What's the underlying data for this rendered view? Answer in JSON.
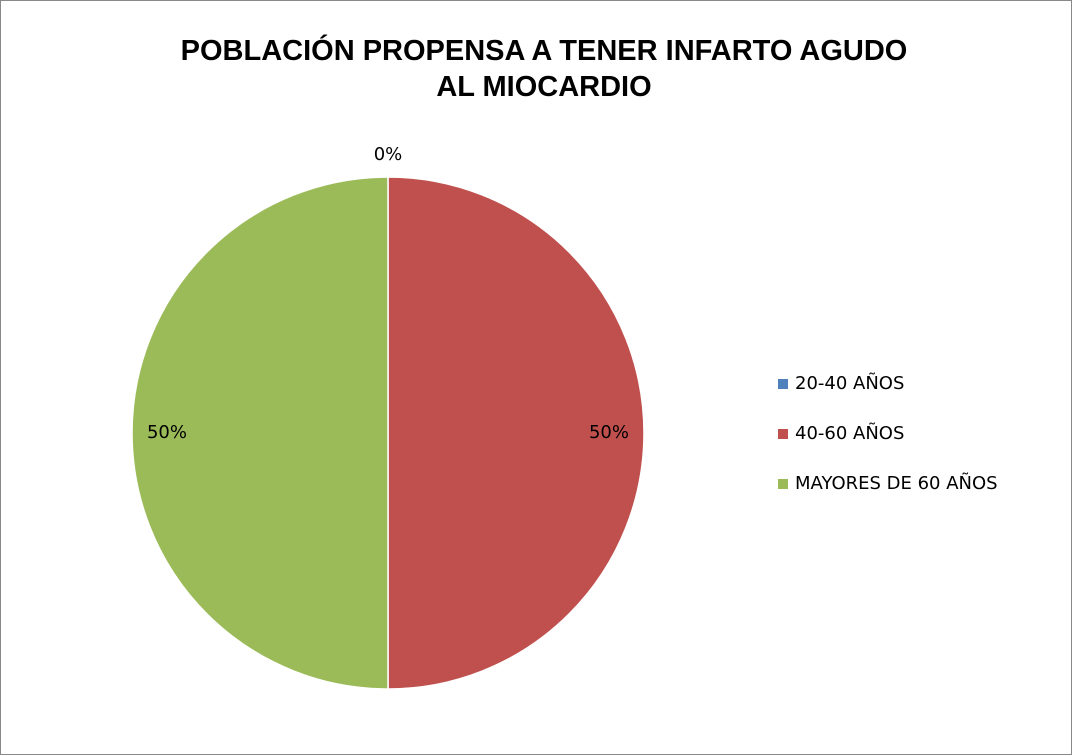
{
  "chart_data": {
    "type": "pie",
    "title": "POBLACIÓN PROPENSA A TENER INFARTO AGUDO\nAL MIOCARDIO",
    "categories": [
      "20-40 AÑOS",
      "40-60 AÑOS",
      "MAYORES DE 60 AÑOS"
    ],
    "values": [
      0,
      50,
      50
    ],
    "value_labels": [
      "0%",
      "50%",
      "50%"
    ],
    "colors": [
      "#4f81bd",
      "#c0504d",
      "#9bbb59"
    ],
    "legend": "right"
  }
}
